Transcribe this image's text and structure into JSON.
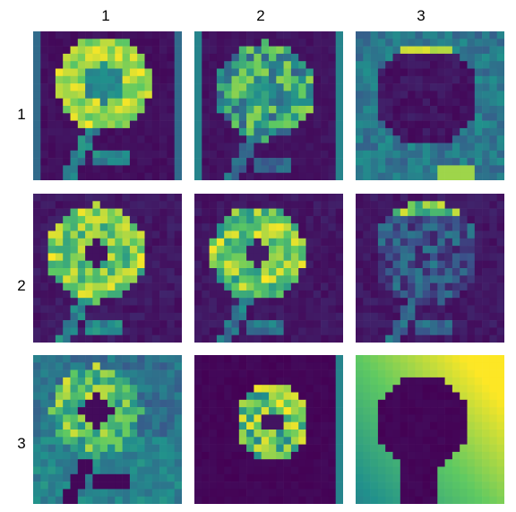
{
  "grid": {
    "column_labels": [
      "1",
      "2",
      "3"
    ],
    "row_labels": [
      "1",
      "2",
      "3"
    ]
  },
  "tiles": [
    {
      "row": 1,
      "col": 1,
      "depicts": "sunflower",
      "variant": "bright-ring"
    },
    {
      "row": 1,
      "col": 2,
      "depicts": "sunflower",
      "variant": "dim-scattered"
    },
    {
      "row": 1,
      "col": 3,
      "depicts": "sunflower",
      "variant": "dark-silhouette-top-highlight"
    },
    {
      "row": 2,
      "col": 1,
      "depicts": "sunflower",
      "variant": "ring"
    },
    {
      "row": 2,
      "col": 2,
      "depicts": "sunflower",
      "variant": "ring"
    },
    {
      "row": 2,
      "col": 3,
      "depicts": "sunflower",
      "variant": "dim-scattered"
    },
    {
      "row": 3,
      "col": 1,
      "depicts": "sunflower",
      "variant": "ring-light-background"
    },
    {
      "row": 3,
      "col": 2,
      "depicts": "sunflower",
      "variant": "small-ring"
    },
    {
      "row": 3,
      "col": 3,
      "depicts": "sunflower",
      "variant": "inverted-silhouette"
    }
  ],
  "colormap": [
    "#440154",
    "#3b528b",
    "#21918c",
    "#5ec962",
    "#fde725"
  ]
}
